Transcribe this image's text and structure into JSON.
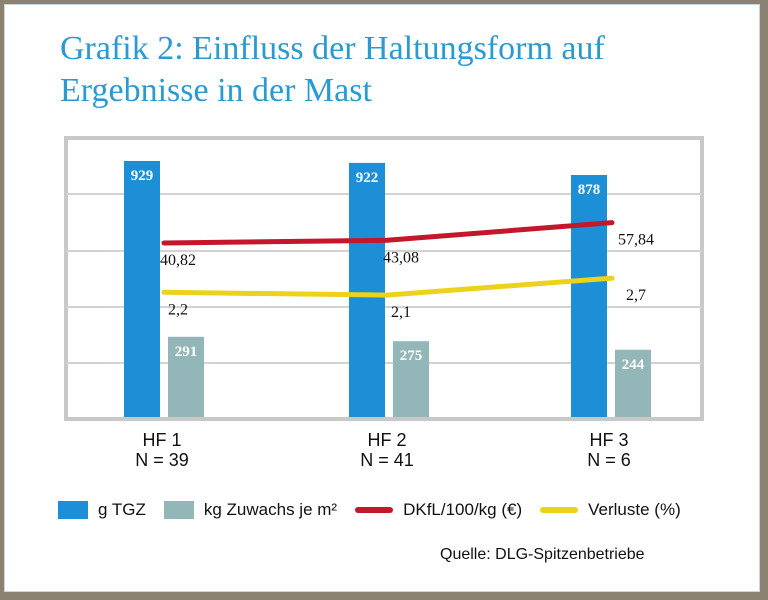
{
  "title_line1": "Grafik 2: Einfluss der Haltungsform auf",
  "title_line2": "Ergebnisse in der Mast",
  "source": "Quelle: DLG-Spitzenbetriebe",
  "chart_data": {
    "type": "bar",
    "categories": [
      {
        "name": "HF 1",
        "n": "N = 39"
      },
      {
        "name": "HF 2",
        "n": "N = 41"
      },
      {
        "name": "HF 3",
        "n": "N = 6"
      }
    ],
    "series": [
      {
        "name": "g TGZ",
        "kind": "bar",
        "color": "#1c8fd6",
        "values": [
          929,
          922,
          878
        ],
        "labels": [
          "929",
          "922",
          "878"
        ]
      },
      {
        "name": "kg Zuwachs je m²",
        "kind": "bar",
        "color": "#93b6b8",
        "values": [
          291,
          275,
          244
        ],
        "labels": [
          "291",
          "275",
          "244"
        ]
      },
      {
        "name": "DKfL/100/kg (€)",
        "kind": "line",
        "color": "#c4172c",
        "values": [
          40.82,
          43.08,
          57.84
        ],
        "labels": [
          "40,82",
          "43,08",
          "57,84"
        ]
      },
      {
        "name": "Verluste (%)",
        "kind": "line",
        "color": "#ecd21a",
        "values": [
          2.2,
          2.1,
          2.7
        ],
        "labels": [
          "2,2",
          "2,1",
          "2,7"
        ]
      }
    ],
    "grid": true,
    "axis_labels_shown": false,
    "legend_position": "bottom"
  }
}
